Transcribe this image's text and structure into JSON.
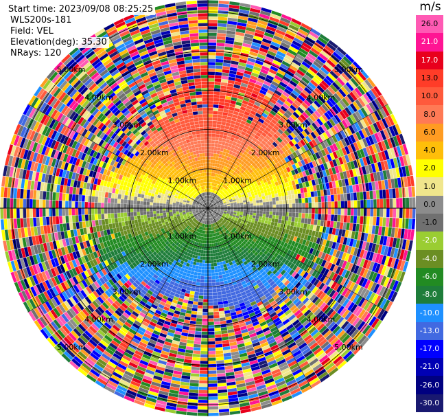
{
  "header": {
    "start_time": "Start time: 2023/09/08 08:25:25",
    "radar_name": "WLS200s-181",
    "field": "Field: VEL",
    "elevation": "Elevation(deg): 35.30",
    "nrays": "NRays: 120"
  },
  "colorbar": {
    "unit": "m/s",
    "levels": [
      {
        "label": "26.0",
        "color": "#ff5ab4"
      },
      {
        "label": "21.0",
        "color": "#ff1493"
      },
      {
        "label": "17.0",
        "color": "#e8001c"
      },
      {
        "label": "13.0",
        "color": "#ff3c28"
      },
      {
        "label": "10.0",
        "color": "#ff5a3c"
      },
      {
        "label": "8.0",
        "color": "#ff7a55"
      },
      {
        "label": "6.0",
        "color": "#ff9c22"
      },
      {
        "label": "4.0",
        "color": "#ffbe0a"
      },
      {
        "label": "2.0",
        "color": "#ffff00"
      },
      {
        "label": "1.0",
        "color": "#f0e68c"
      },
      {
        "label": "0.0",
        "color": "#8c8c8c"
      },
      {
        "label": "-1.0",
        "color": "#707070"
      },
      {
        "label": "-2.0",
        "color": "#9acd32"
      },
      {
        "label": "-4.0",
        "color": "#6b8e23"
      },
      {
        "label": "-6.0",
        "color": "#228b22"
      },
      {
        "label": "-8.0",
        "color": "#1e7d3a"
      },
      {
        "label": "-10.0",
        "color": "#1e90ff"
      },
      {
        "label": "-13.0",
        "color": "#4169e1"
      },
      {
        "label": "-17.0",
        "color": "#0000ff"
      },
      {
        "label": "-21.0",
        "color": "#0000b4"
      },
      {
        "label": "-26.0",
        "color": "#000080"
      },
      {
        "label": "-30.0",
        "color": "#191970"
      }
    ]
  },
  "range_rings": [
    {
      "range_km": 1,
      "label": "1.00km"
    },
    {
      "range_km": 2,
      "label": "2.00km"
    },
    {
      "range_km": 3,
      "label": "3.00km"
    },
    {
      "range_km": 4,
      "label": "4.00km"
    },
    {
      "range_km": 5,
      "label": "5.00km"
    }
  ],
  "max_range_km": 5.3
}
